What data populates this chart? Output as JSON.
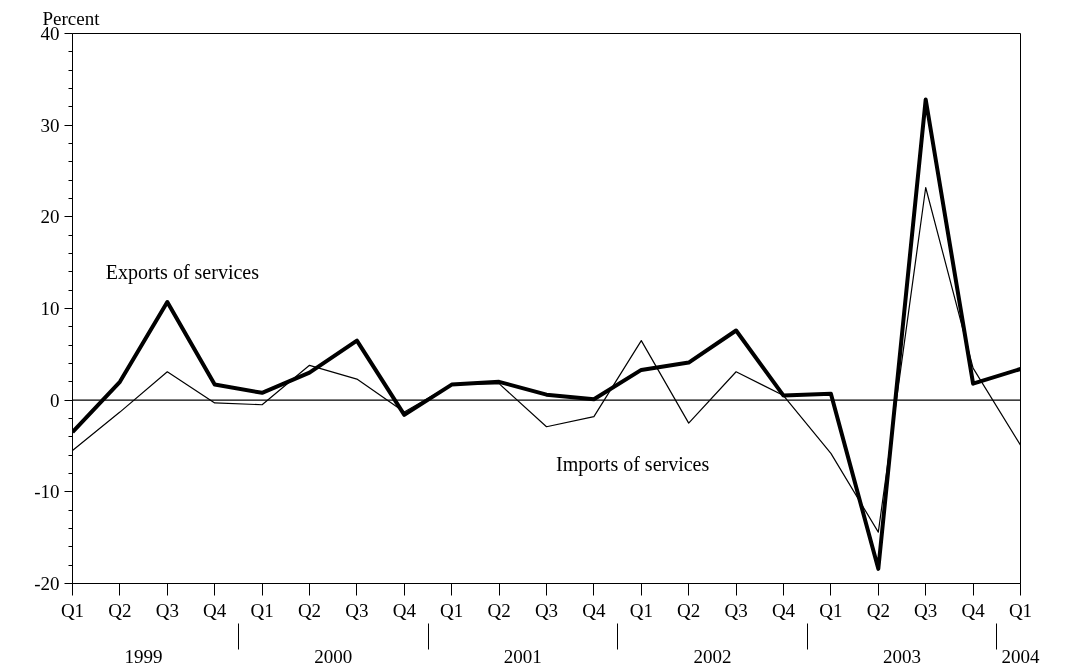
{
  "chart_data": {
    "type": "line",
    "ylabel": "Percent",
    "categories": [
      "Q1",
      "Q2",
      "Q3",
      "Q4",
      "Q1",
      "Q2",
      "Q3",
      "Q4",
      "Q1",
      "Q2",
      "Q3",
      "Q4",
      "Q1",
      "Q2",
      "Q3",
      "Q4",
      "Q1",
      "Q2",
      "Q3",
      "Q4",
      "Q1"
    ],
    "annotations": [
      "1999",
      "2000",
      "2001",
      "2002",
      "2003",
      "2004"
    ],
    "series": [
      {
        "name": "Exports of services",
        "color": "#000000",
        "values": [
          -3.5,
          2.0,
          10.7,
          1.7,
          0.8,
          3.0,
          6.5,
          -1.6,
          1.7,
          2.0,
          0.6,
          0.1,
          3.3,
          4.1,
          7.6,
          0.5,
          0.7,
          -18.4,
          32.8,
          1.8,
          3.4
        ]
      },
      {
        "name": "Imports of services",
        "color": "#000000",
        "values": [
          -5.5,
          -1.3,
          3.1,
          -0.3,
          -0.5,
          3.8,
          2.3,
          -1.3,
          1.7,
          1.8,
          -2.9,
          -1.8,
          6.5,
          -2.5,
          3.1,
          0.5,
          -5.8,
          -14.4,
          23.2,
          3.5,
          -4.9
        ]
      }
    ],
    "ylim": [
      -20,
      40
    ],
    "yticks": [
      -20,
      {
        "value": -18,
        "label": null
      },
      {
        "value": -16,
        "label": null
      },
      {
        "value": -14,
        "label": null
      },
      {
        "value": -12,
        "label": null
      },
      -10,
      {
        "value": -8,
        "label": null
      },
      {
        "value": -6,
        "label": null
      },
      {
        "value": -4,
        "label": null
      },
      {
        "value": -2,
        "label": null
      },
      0,
      {
        "value": 2,
        "label": null
      },
      {
        "value": 4,
        "label": null
      },
      {
        "value": 6,
        "label": null
      },
      {
        "value": 8,
        "label": null
      },
      10,
      {
        "value": 12,
        "label": null
      },
      {
        "value": 14,
        "label": null
      },
      {
        "value": 16,
        "label": null
      },
      {
        "value": 18,
        "label": null
      },
      20,
      {
        "value": 22,
        "label": null
      },
      {
        "value": 24,
        "label": null
      },
      {
        "value": 26,
        "label": null
      },
      {
        "value": 28,
        "label": null
      },
      30,
      {
        "value": 32,
        "label": null
      },
      {
        "value": 34,
        "label": null
      },
      {
        "value": 36,
        "label": null
      },
      {
        "value": 38,
        "label": null
      },
      40
    ],
    "ref_lines": [
      {
        "axis": "y",
        "value": 0,
        "label": null,
        "color": "#000000"
      }
    ],
    "grid": false,
    "marker": "none",
    "line_style": "solid"
  }
}
